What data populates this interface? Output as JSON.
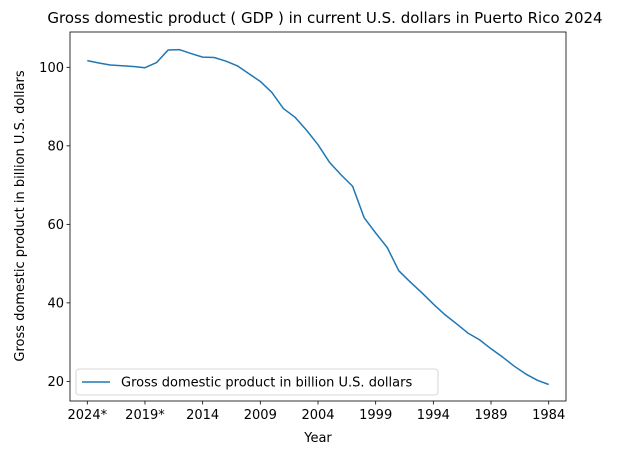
{
  "chart_data": {
    "type": "line",
    "title": "Gross domestic product ( GDP ) in current U.S. dollars in Puerto Rico 2024",
    "xlabel": "Year",
    "ylabel": "Gross domestic product in billion U.S. dollars",
    "x_reversed": true,
    "x": [
      2024,
      2023,
      2022,
      2021,
      2020,
      2019,
      2018,
      2017,
      2016,
      2015,
      2014,
      2013,
      2012,
      2011,
      2010,
      2009,
      2008,
      2007,
      2006,
      2005,
      2004,
      2003,
      2002,
      2001,
      2000,
      1999,
      1998,
      1997,
      1996,
      1995,
      1994,
      1993,
      1992,
      1991,
      1990,
      1989,
      1988,
      1987,
      1986,
      1985,
      1984
    ],
    "xlim": [
      2025.5,
      1982.5
    ],
    "xticks": [
      {
        "value": 2024,
        "label": "2024*"
      },
      {
        "value": 2019,
        "label": "2019*"
      },
      {
        "value": 2014,
        "label": "2014"
      },
      {
        "value": 2009,
        "label": "2009"
      },
      {
        "value": 2004,
        "label": "2004"
      },
      {
        "value": 1999,
        "label": "1999"
      },
      {
        "value": 1994,
        "label": "1994"
      },
      {
        "value": 1989,
        "label": "1989"
      },
      {
        "value": 1984,
        "label": "1984"
      }
    ],
    "ylim": [
      15,
      109
    ],
    "yticks": [
      20,
      40,
      60,
      80,
      100
    ],
    "grid": false,
    "legend_position": "lower-left",
    "series": [
      {
        "name": "Gross domestic product in billion U.S. dollars",
        "color": "#1f77b4",
        "values": [
          101.7,
          101.1,
          100.6,
          100.4,
          100.2,
          99.9,
          101.2,
          104.4,
          104.5,
          103.5,
          102.6,
          102.5,
          101.6,
          100.4,
          98.4,
          96.4,
          93.6,
          89.5,
          87.3,
          84.0,
          80.3,
          75.8,
          72.6,
          69.7,
          61.7,
          57.8,
          54.1,
          48.2,
          45.3,
          42.6,
          39.7,
          37.0,
          34.7,
          32.3,
          30.6,
          28.3,
          26.2,
          23.9,
          21.9,
          20.3,
          19.2
        ]
      }
    ]
  }
}
